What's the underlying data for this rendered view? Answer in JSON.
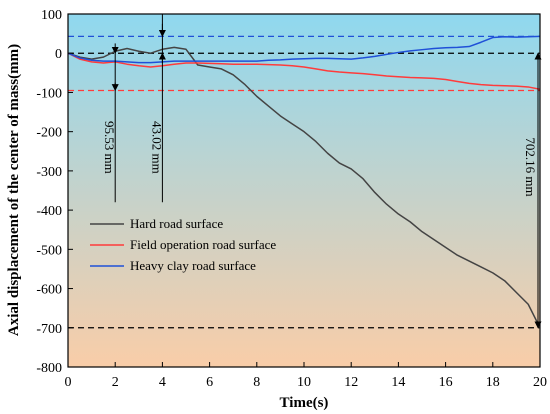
{
  "chart_data": {
    "type": "line",
    "xlabel": "Time(s)",
    "ylabel": "Axial displacement of the center of mass(mm)",
    "xlim": [
      0,
      20
    ],
    "ylim": [
      -800,
      100
    ],
    "xticks": [
      0,
      2,
      4,
      6,
      8,
      10,
      12,
      14,
      16,
      18,
      20
    ],
    "yticks": [
      100,
      0,
      -100,
      -200,
      -300,
      -400,
      -500,
      -600,
      -700,
      -800
    ],
    "legend_position": "center-left",
    "background_gradient": [
      "#8fd8ef",
      "#f9cda8"
    ],
    "series": [
      {
        "name": "Hard road surface",
        "color": "#444444",
        "x": [
          0,
          0.5,
          1,
          1.5,
          2,
          2.5,
          3,
          3.5,
          4,
          4.5,
          5,
          5.5,
          6,
          6.5,
          7,
          7.5,
          8,
          8.5,
          9,
          9.5,
          10,
          10.5,
          11,
          11.5,
          12,
          12.5,
          13,
          13.5,
          14,
          14.5,
          15,
          15.5,
          16,
          16.5,
          17,
          17.5,
          18,
          18.5,
          19,
          19.5,
          20
        ],
        "y": [
          0,
          -10,
          -15,
          -10,
          5,
          12,
          5,
          0,
          10,
          15,
          10,
          -30,
          -35,
          -40,
          -55,
          -80,
          -110,
          -135,
          -160,
          -180,
          -200,
          -225,
          -255,
          -280,
          -295,
          -320,
          -355,
          -385,
          -410,
          -430,
          -455,
          -475,
          -495,
          -515,
          -530,
          -545,
          -560,
          -580,
          -610,
          -640,
          -700
        ]
      },
      {
        "name": "Field operation road surface",
        "color": "#ff3b3b",
        "x": [
          0,
          0.5,
          1,
          1.5,
          2,
          2.5,
          3,
          3.5,
          4,
          4.5,
          5,
          5.5,
          6,
          6.5,
          7,
          7.5,
          8,
          8.5,
          9,
          9.5,
          10,
          10.5,
          11,
          11.5,
          12,
          12.5,
          13,
          13.5,
          14,
          14.5,
          15,
          15.5,
          16,
          16.5,
          17,
          17.5,
          18,
          18.5,
          19,
          19.5,
          20
        ],
        "y": [
          0,
          -15,
          -22,
          -25,
          -22,
          -28,
          -32,
          -35,
          -32,
          -28,
          -25,
          -25,
          -26,
          -27,
          -28,
          -28,
          -28,
          -29,
          -30,
          -32,
          -35,
          -40,
          -45,
          -48,
          -50,
          -52,
          -55,
          -58,
          -60,
          -62,
          -63,
          -64,
          -67,
          -72,
          -77,
          -80,
          -82,
          -83,
          -84,
          -86,
          -92
        ]
      },
      {
        "name": "Heavy clay road surface",
        "color": "#1f50d8",
        "x": [
          0,
          0.5,
          1,
          1.5,
          2,
          2.5,
          3,
          3.5,
          4,
          4.5,
          5,
          5.5,
          6,
          6.5,
          7,
          7.5,
          8,
          8.5,
          9,
          9.5,
          10,
          10.5,
          11,
          11.5,
          12,
          12.5,
          13,
          13.5,
          14,
          14.5,
          15,
          15.5,
          16,
          16.5,
          17,
          17.5,
          18,
          18.5,
          19,
          19.5,
          20
        ],
        "y": [
          0,
          -12,
          -18,
          -20,
          -20,
          -22,
          -24,
          -24,
          -22,
          -20,
          -20,
          -20,
          -20,
          -20,
          -20,
          -20,
          -20,
          -18,
          -17,
          -15,
          -14,
          -13,
          -13,
          -14,
          -15,
          -12,
          -8,
          -3,
          2,
          6,
          9,
          12,
          14,
          15,
          17,
          28,
          40,
          42,
          41,
          42,
          43
        ]
      }
    ],
    "reference_lines": [
      {
        "y": 43,
        "color": "#1f50d8"
      },
      {
        "y": 0,
        "color": "#000000"
      },
      {
        "y": -95,
        "color": "#ff3b3b"
      },
      {
        "y": -700,
        "color": "#000000"
      }
    ],
    "annotations": [
      {
        "label": "95.53 mm",
        "x": 2,
        "y_from": 0,
        "y_to": -95
      },
      {
        "label": "43.02 mm",
        "x": 4,
        "y_from": 0,
        "y_to": 43
      },
      {
        "label": "702.16 mm",
        "x": 20,
        "y_from": 0,
        "y_to": -700
      }
    ]
  }
}
